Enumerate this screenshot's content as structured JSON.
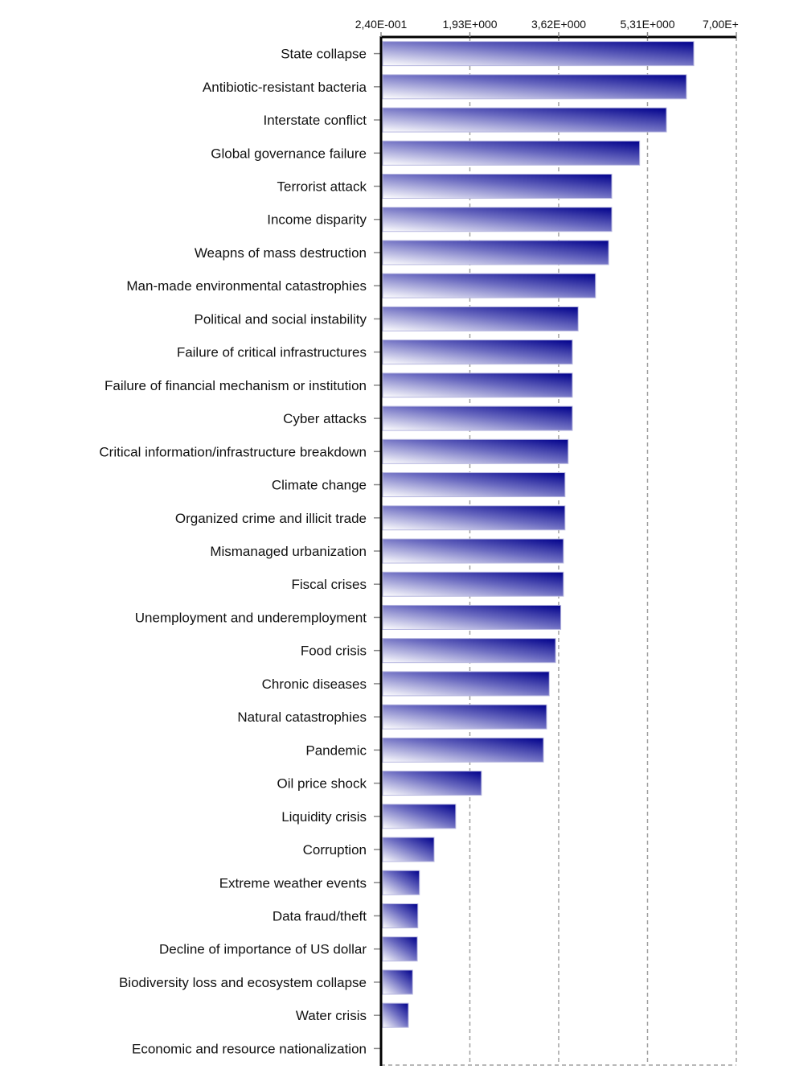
{
  "chart_data": {
    "type": "bar",
    "orientation": "horizontal",
    "title": "",
    "xlabel": "",
    "ylabel": "",
    "xlim": [
      0.24,
      7.0
    ],
    "x_ticks": [
      0.24,
      1.93,
      3.62,
      5.31,
      7.0
    ],
    "x_tick_labels": [
      "2,40E-001",
      "1,93E+000",
      "3,62E+000",
      "5,31E+000",
      "7,00E+"
    ],
    "axis_position": "top",
    "grid": true,
    "colors": {
      "bar_dark": "#00008b",
      "bar_light": "#ffffff",
      "grid": "#a0a0a0",
      "axis": "#000000"
    },
    "categories": [
      "State collapse",
      "Antibiotic-resistant bacteria",
      "Interstate conflict",
      "Global governance failure",
      "Terrorist attack",
      "Income disparity",
      "Weapns of mass destruction",
      "Man-made environmental catastrophies",
      "Political and social instability",
      "Failure of critical infrastructures",
      "Failure of financial mechanism or institution",
      "Cyber attacks",
      "Critical information/infrastructure breakdown",
      "Climate change",
      "Organized crime and illicit trade",
      "Mismanaged urbanization",
      "Fiscal crises",
      "Unemployment and underemployment",
      "Food crisis",
      "Chronic diseases",
      "Natural catastrophies",
      "Pandemic",
      "Oil price shock",
      "Liquidity crisis",
      "Corruption",
      "Extreme weather events",
      "Data fraud/theft",
      "Decline of importance of US dollar",
      "Biodiversity loss and ecosystem collapse",
      "Water crisis",
      "Economic and resource nationalization"
    ],
    "values": [
      6.19,
      6.05,
      5.67,
      5.16,
      4.63,
      4.63,
      4.57,
      4.32,
      3.99,
      3.88,
      3.88,
      3.88,
      3.8,
      3.74,
      3.74,
      3.71,
      3.71,
      3.66,
      3.56,
      3.44,
      3.39,
      3.33,
      2.15,
      1.66,
      1.25,
      0.97,
      0.94,
      0.93,
      0.84,
      0.76,
      0.24
    ]
  }
}
